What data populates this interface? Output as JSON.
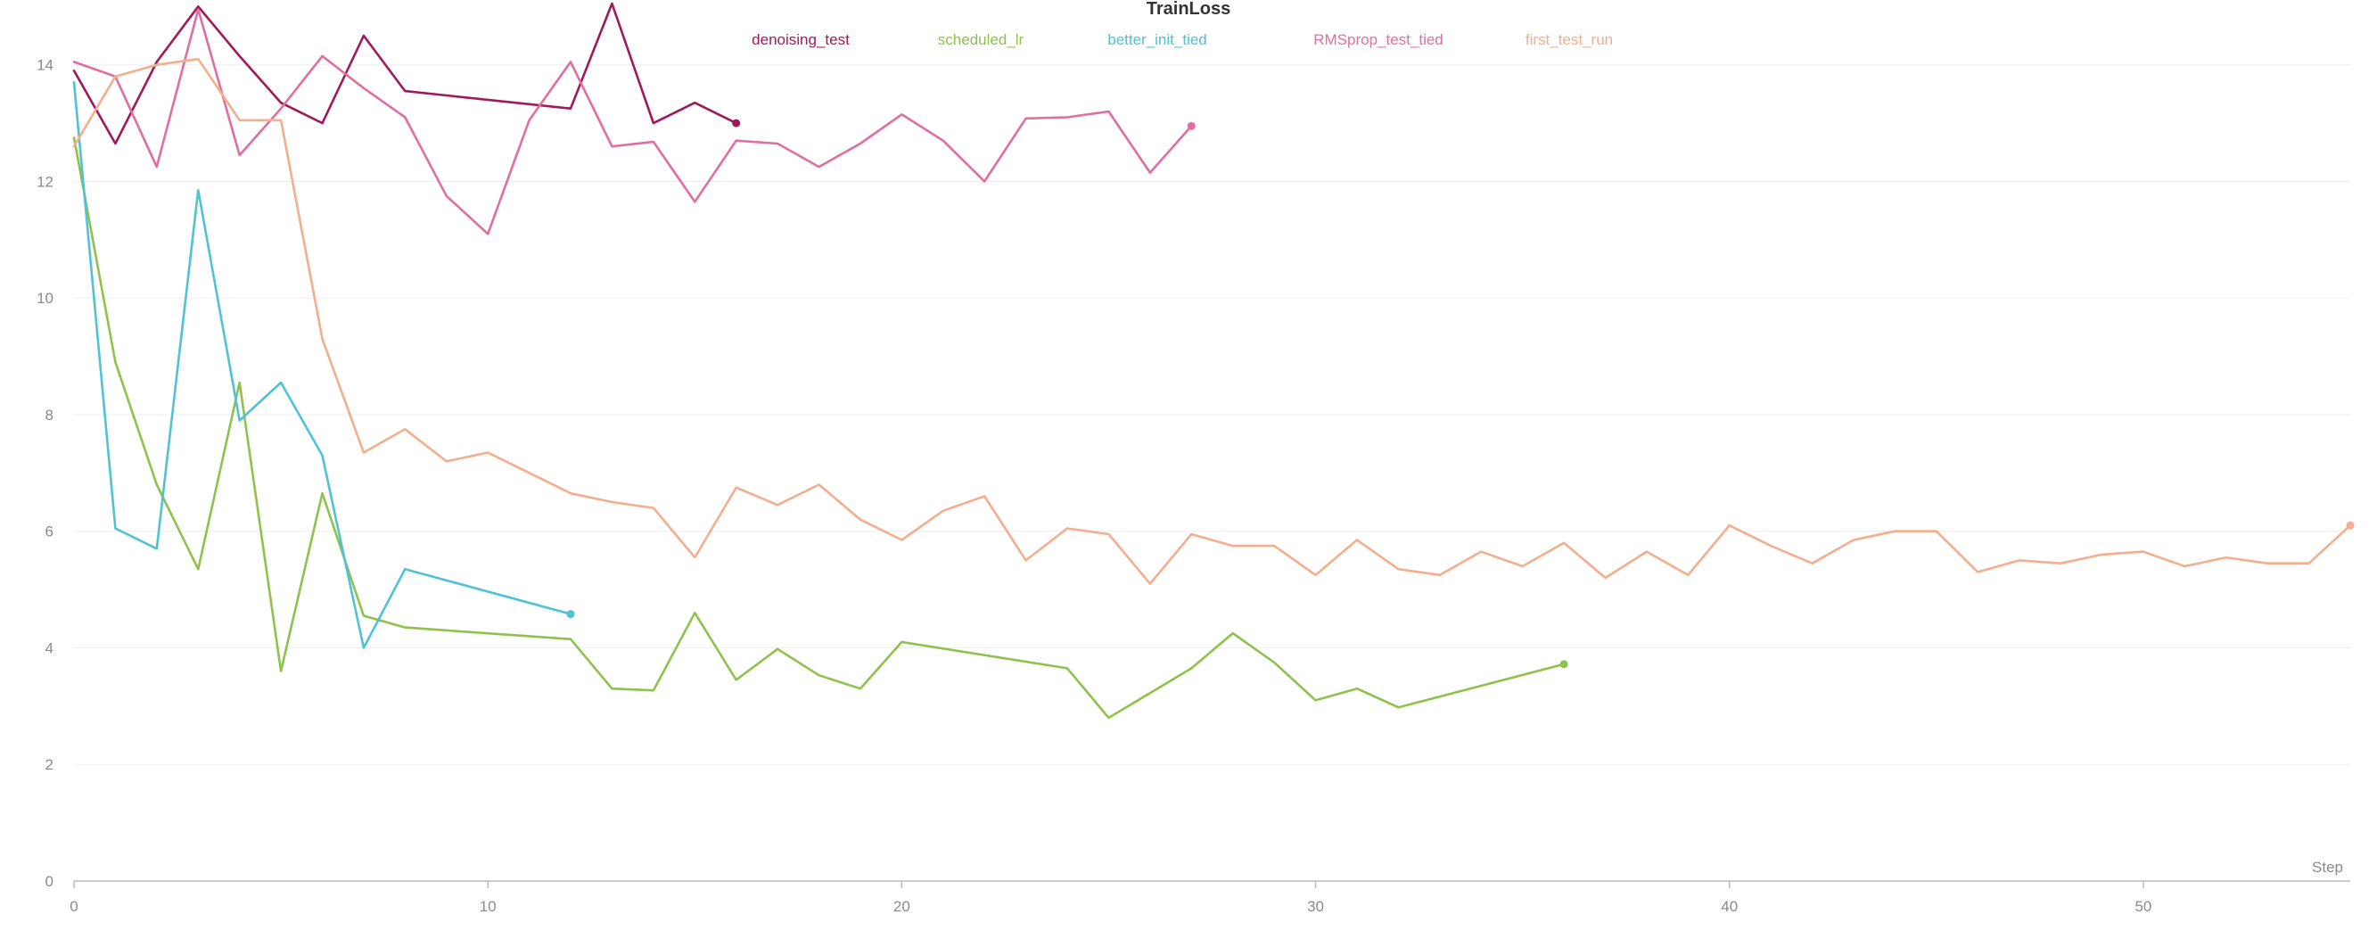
{
  "chart_data": {
    "type": "line",
    "title": "TrainLoss",
    "xlabel": "Step",
    "ylabel": "",
    "xlim": [
      0,
      55
    ],
    "ylim": [
      0,
      14.5
    ],
    "xticks": [
      0,
      10,
      20,
      30,
      40,
      50
    ],
    "yticks": [
      0,
      2,
      4,
      6,
      8,
      10,
      12,
      14
    ],
    "grid": true,
    "legend_position": "top",
    "series": [
      {
        "name": "denoising_test",
        "color": "#a0195a",
        "x": [
          0,
          1,
          2,
          3,
          4,
          5,
          6,
          7,
          8,
          12,
          13,
          14,
          15,
          16
        ],
        "y": [
          13.9,
          12.65,
          14.05,
          15.0,
          14.15,
          13.35,
          13.0,
          14.5,
          13.55,
          13.25,
          15.05,
          13.0,
          13.35,
          13.0
        ]
      },
      {
        "name": "scheduled_lr",
        "color": "#8fc24a",
        "x": [
          0,
          1,
          2,
          3,
          4,
          5,
          6,
          7,
          8,
          12,
          13,
          14,
          15,
          16,
          17,
          18,
          19,
          20,
          24,
          25,
          27,
          28,
          29,
          30,
          31,
          32,
          36
        ],
        "y": [
          12.75,
          8.9,
          6.8,
          5.35,
          8.55,
          3.6,
          6.65,
          4.55,
          4.35,
          4.15,
          3.3,
          3.27,
          4.6,
          3.45,
          3.98,
          3.53,
          3.3,
          4.1,
          3.65,
          2.8,
          3.65,
          4.25,
          3.75,
          3.1,
          3.3,
          2.98,
          3.72
        ]
      },
      {
        "name": "better_init_tied",
        "color": "#4fc2d6",
        "x": [
          0,
          1,
          2,
          3,
          4,
          5,
          6,
          7,
          8,
          12
        ],
        "y": [
          13.7,
          6.05,
          5.7,
          11.85,
          7.9,
          8.55,
          7.3,
          4.0,
          5.35,
          4.58
        ]
      },
      {
        "name": "RMSprop_test_tied",
        "color": "#e06e9e",
        "x": [
          0,
          1,
          2,
          3,
          4,
          5,
          6,
          7,
          8,
          9,
          10,
          11,
          12,
          13,
          14,
          15,
          16,
          17,
          18,
          19,
          20,
          21,
          22,
          23,
          24,
          25,
          26,
          27
        ],
        "y": [
          14.05,
          13.8,
          12.25,
          14.95,
          12.45,
          13.25,
          14.15,
          13.6,
          13.1,
          11.75,
          11.1,
          13.05,
          14.05,
          12.6,
          12.68,
          11.65,
          12.7,
          12.65,
          12.25,
          12.65,
          13.15,
          12.7,
          12.0,
          13.08,
          13.1,
          13.2,
          12.15,
          12.95
        ]
      },
      {
        "name": "first_test_run",
        "color": "#f3ae8e",
        "x": [
          0,
          1,
          2,
          3,
          4,
          5,
          6,
          7,
          8,
          9,
          10,
          11,
          12,
          13,
          14,
          15,
          16,
          17,
          18,
          19,
          20,
          21,
          22,
          23,
          24,
          25,
          26,
          27,
          28,
          29,
          30,
          31,
          32,
          33,
          34,
          35,
          36,
          37,
          38,
          39,
          40,
          41,
          42,
          43,
          44,
          45,
          46,
          47,
          48,
          49,
          50,
          51,
          52,
          53,
          54,
          55
        ],
        "y": [
          12.6,
          13.8,
          14.0,
          14.1,
          13.05,
          13.05,
          9.3,
          7.35,
          7.75,
          7.2,
          7.35,
          7.0,
          6.65,
          6.5,
          6.4,
          5.55,
          6.75,
          6.45,
          6.8,
          6.2,
          5.85,
          6.35,
          6.6,
          5.5,
          6.05,
          5.95,
          5.1,
          5.95,
          5.75,
          5.75,
          5.25,
          5.85,
          5.35,
          5.25,
          5.65,
          5.4,
          5.8,
          5.2,
          5.65,
          5.25,
          6.1,
          5.75,
          5.45,
          5.85,
          6.0,
          6.0,
          5.3,
          5.5,
          5.45,
          5.6,
          5.65,
          5.4,
          5.55,
          5.45,
          5.45,
          6.1
        ]
      }
    ]
  }
}
